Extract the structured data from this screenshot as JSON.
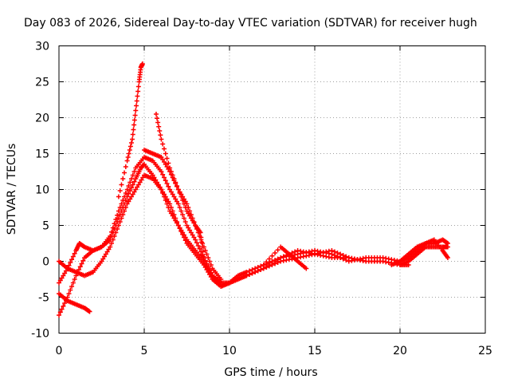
{
  "chart_data": {
    "type": "scatter",
    "title": "Day 083 of 2026, Sidereal Day-to-day VTEC variation (SDTVAR) for receiver hugh",
    "xlabel": "GPS time / hours",
    "ylabel": "SDTVAR / TECUs",
    "xlim": [
      0,
      25
    ],
    "ylim": [
      -10,
      30
    ],
    "xticks": [
      "0",
      "5",
      "10",
      "15",
      "20",
      "25"
    ],
    "yticks": [
      "-10",
      "-5",
      "0",
      "5",
      "10",
      "15",
      "20",
      "25",
      "30"
    ],
    "grid": true,
    "marker": "+",
    "color": "#ff0000",
    "series": [
      {
        "name": "s1",
        "points": [
          [
            0,
            -7.5
          ],
          [
            0.5,
            -5
          ],
          [
            1,
            -2
          ],
          [
            1.5,
            0.5
          ],
          [
            2,
            1.5
          ],
          [
            2.5,
            2
          ],
          [
            3,
            3
          ],
          [
            3.5,
            6
          ],
          [
            4,
            9
          ],
          [
            4.5,
            11.5
          ],
          [
            4.8,
            13
          ],
          [
            5,
            13.5
          ],
          [
            5.5,
            12
          ],
          [
            6,
            10
          ],
          [
            6.5,
            8
          ],
          [
            7,
            5
          ],
          [
            7.5,
            3
          ],
          [
            8,
            1.5
          ],
          [
            8.5,
            0
          ],
          [
            9,
            -2
          ],
          [
            9.5,
            -3
          ],
          [
            10,
            -3
          ],
          [
            10.5,
            -2.5
          ],
          [
            11,
            -2
          ],
          [
            12,
            -1
          ],
          [
            13,
            0
          ],
          [
            14,
            0.5
          ],
          [
            15,
            1
          ],
          [
            16,
            0.5
          ],
          [
            17,
            0.5
          ],
          [
            18,
            0
          ],
          [
            19,
            0
          ],
          [
            20,
            -0.5
          ],
          [
            20.5,
            0
          ],
          [
            21,
            1
          ],
          [
            21.5,
            2
          ],
          [
            22,
            2
          ],
          [
            22.5,
            2
          ],
          [
            22.8,
            2
          ]
        ]
      },
      {
        "name": "s2",
        "points": [
          [
            0,
            -3
          ],
          [
            0.5,
            -1
          ],
          [
            1,
            1.5
          ],
          [
            1.2,
            2.5
          ],
          [
            1.5,
            2
          ],
          [
            2,
            1.5
          ],
          [
            2.5,
            2
          ],
          [
            3,
            3.5
          ],
          [
            3.5,
            7
          ],
          [
            4,
            10
          ],
          [
            4.5,
            13
          ],
          [
            5,
            14.5
          ],
          [
            5.5,
            14
          ],
          [
            6,
            12.5
          ],
          [
            6.5,
            10
          ],
          [
            7,
            8
          ],
          [
            7.5,
            5
          ],
          [
            8,
            3
          ],
          [
            8.5,
            0.5
          ],
          [
            9,
            -2
          ],
          [
            9.5,
            -3.5
          ],
          [
            10,
            -3
          ],
          [
            10.5,
            -2
          ],
          [
            11,
            -1.5
          ],
          [
            12,
            -0.5
          ],
          [
            13,
            0.5
          ],
          [
            14,
            1
          ],
          [
            15,
            1.5
          ],
          [
            16,
            1
          ],
          [
            17,
            0
          ],
          [
            18,
            0.5
          ],
          [
            19,
            0.5
          ],
          [
            20,
            0
          ],
          [
            20.5,
            0.5
          ],
          [
            21,
            1.5
          ],
          [
            21.5,
            2.5
          ],
          [
            22,
            2.5
          ],
          [
            22.5,
            3
          ],
          [
            22.8,
            2.5
          ]
        ]
      },
      {
        "name": "s3",
        "points": [
          [
            0,
            0
          ],
          [
            0.5,
            -1
          ],
          [
            1,
            -1.5
          ],
          [
            1.5,
            -2
          ],
          [
            2,
            -1.5
          ],
          [
            2.5,
            0
          ],
          [
            3,
            2
          ],
          [
            3.5,
            5
          ],
          [
            4,
            8
          ],
          [
            4.5,
            10
          ],
          [
            5,
            12
          ],
          [
            5.5,
            11.5
          ],
          [
            6,
            10
          ],
          [
            6.5,
            7
          ],
          [
            7,
            5
          ],
          [
            7.5,
            2.5
          ],
          [
            8,
            1
          ],
          [
            8.5,
            -0.5
          ],
          [
            9,
            -2.5
          ],
          [
            9.5,
            -3.5
          ],
          [
            10,
            -3
          ],
          [
            11,
            -2
          ],
          [
            12,
            -1
          ],
          [
            13,
            0.5
          ],
          [
            14,
            1.5
          ],
          [
            15,
            1
          ],
          [
            16,
            1.5
          ],
          [
            17,
            0.5
          ],
          [
            18,
            0
          ],
          [
            19,
            0
          ],
          [
            20,
            -0.5
          ],
          [
            20.5,
            -0.5
          ]
        ]
      },
      {
        "name": "s4",
        "points": [
          [
            0,
            -4.5
          ],
          [
            0.5,
            -5.5
          ],
          [
            1,
            -6
          ],
          [
            1.5,
            -6.5
          ],
          [
            1.8,
            -7
          ]
        ]
      },
      {
        "name": "s5",
        "points": [
          [
            3.5,
            9
          ],
          [
            4,
            14
          ],
          [
            4.3,
            17
          ],
          [
            4.5,
            21
          ],
          [
            4.7,
            25
          ],
          [
            4.8,
            27
          ],
          [
            4.9,
            27.5
          ]
        ]
      },
      {
        "name": "s6",
        "points": [
          [
            5.7,
            20.5
          ],
          [
            6,
            17
          ],
          [
            6.5,
            13
          ],
          [
            7,
            10
          ],
          [
            7.5,
            8
          ],
          [
            8,
            5
          ],
          [
            8.3,
            4
          ],
          [
            8.5,
            0
          ]
        ]
      },
      {
        "name": "s7",
        "points": [
          [
            5,
            15.5
          ],
          [
            5.5,
            15
          ],
          [
            6,
            14.5
          ],
          [
            6.5,
            12.5
          ],
          [
            7,
            10
          ],
          [
            7.5,
            7
          ],
          [
            8,
            5
          ],
          [
            8.5,
            2
          ],
          [
            9,
            -1
          ],
          [
            9.5,
            -2.5
          ]
        ]
      },
      {
        "name": "s8",
        "points": [
          [
            12,
            -0.5
          ],
          [
            13,
            2
          ],
          [
            13.5,
            1
          ],
          [
            14,
            0
          ],
          [
            14.5,
            -1
          ]
        ]
      },
      {
        "name": "s9",
        "points": [
          [
            19.5,
            -0.5
          ],
          [
            20,
            0
          ],
          [
            20.5,
            1
          ],
          [
            21,
            2
          ],
          [
            21.5,
            2.5
          ],
          [
            22,
            3
          ],
          [
            22.5,
            1.5
          ],
          [
            22.8,
            0.5
          ]
        ]
      }
    ]
  }
}
